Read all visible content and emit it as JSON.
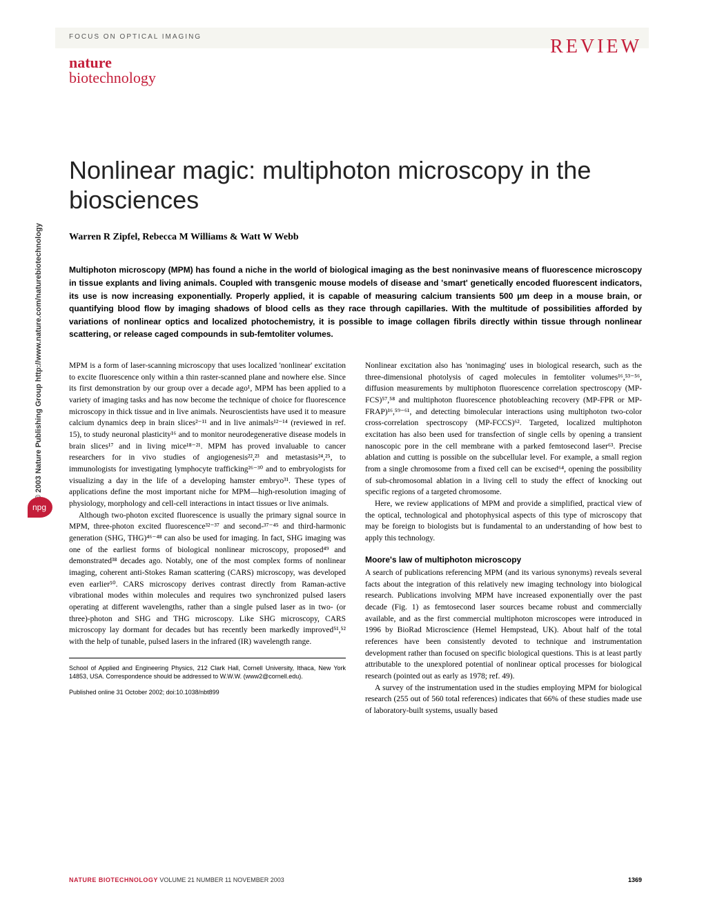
{
  "header": {
    "focus": "FOCUS ON OPTICAL IMAGING",
    "review": "REVIEW",
    "journal_line1": "nature",
    "journal_line2": "biotechnology"
  },
  "sidebar": {
    "copyright": "© 2003 Nature Publishing Group   http://www.nature.com/naturebiotechnology",
    "badge": "npg"
  },
  "article": {
    "title": "Nonlinear magic: multiphoton microscopy in the biosciences",
    "authors": "Warren R Zipfel, Rebecca M Williams & Watt W Webb",
    "abstract": "Multiphoton microscopy (MPM) has found a niche in the world of biological imaging as the best noninvasive means of fluorescence microscopy in tissue explants and living animals. Coupled with transgenic mouse models of disease and 'smart' genetically encoded fluorescent indicators, its use is now increasing exponentially. Properly applied, it is capable of measuring calcium transients 500 μm deep in a mouse brain, or quantifying blood flow by imaging shadows of blood cells as they race through capillaries. With the multitude of possibilities afforded by variations of nonlinear optics and localized photochemistry, it is possible to image collagen fibrils directly within tissue through nonlinear scattering, or release caged compounds in sub-femtoliter volumes.",
    "para1": "MPM is a form of laser-scanning microscopy that uses localized 'nonlinear' excitation to excite fluorescence only within a thin raster-scanned plane and nowhere else. Since its first demonstration by our group over a decade ago¹, MPM has been applied to a variety of imaging tasks and has now become the technique of choice for fluorescence microscopy in thick tissue and in live animals. Neuroscientists have used it to measure calcium dynamics deep in brain slices²⁻¹¹ and in live animals¹²⁻¹⁴ (reviewed in ref. 15), to study neuronal plasticity¹⁶ and to monitor neurodegenerative disease models in brain slices¹⁷ and in living mice¹⁸⁻²¹. MPM has proved invaluable to cancer researchers for in vivo studies of angiogenesis²²,²³ and metastasis²⁴,²⁵, to immunologists for investigating lymphocyte trafficking²⁶⁻³⁰ and to embryologists for visualizing a day in the life of a developing hamster embryo³¹. These types of applications define the most important niche for MPM—high-resolution imaging of physiology, morphology and cell-cell interactions in intact tissues or live animals.",
    "para2": "Although two-photon excited fluorescence is usually the primary signal source in MPM, three-photon excited fluorescence³²⁻³⁷ and second-³⁷⁻⁴⁵ and third-harmonic generation (SHG, THG)⁴⁶⁻⁴⁸ can also be used for imaging. In fact, SHG imaging was one of the earliest forms of biological nonlinear microscopy, proposed⁴⁹ and demonstrated³⁸ decades ago. Notably, one of the most complex forms of nonlinear imaging, coherent anti-Stokes Raman scattering (CARS) microscopy, was developed even earlier⁵⁰. CARS microscopy derives contrast directly from Raman-active vibrational modes within molecules and requires two synchronized pulsed lasers operating at different wavelengths, rather than a single pulsed laser as in two- (or three)-photon and SHG and THG microscopy. Like SHG microscopy, CARS microscopy lay dormant for decades but has recently been markedly improved⁵¹,⁵² with the help of tunable, pulsed lasers in the infrared (IR) wavelength range.",
    "para3": "Nonlinear excitation also has 'nonimaging' uses in biological research, such as the three-dimensional photolysis of caged molecules in femtoliter volumes¹⁶,⁵³⁻⁵⁶, diffusion measurements by multiphoton fluorescence correlation spectroscopy (MP-FCS)⁵⁷,⁵⁸ and multiphoton fluorescence photobleaching recovery (MP-FPR or MP-FRAP)¹⁶,⁵⁹⁻⁶¹, and detecting bimolecular interactions using multiphoton two-color cross-correlation spectroscopy (MP-FCCS)⁶². Targeted, localized multiphoton excitation has also been used for transfection of single cells by opening a transient nanoscopic pore in the cell membrane with a parked femtosecond laser⁶³. Precise ablation and cutting is possible on the subcellular level. For example, a small region from a single chromosome from a fixed cell can be excised⁶⁴, opening the possibility of sub-chromosomal ablation in a living cell to study the effect of knocking out specific regions of a targeted chromosome.",
    "para4": "Here, we review applications of MPM and provide a simplified, practical view of the optical, technological and photophysical aspects of this type of microscopy that may be foreign to biologists but is fundamental to an understanding of how best to apply this technology.",
    "section_heading": "Moore's law of multiphoton microscopy",
    "para5": "A search of publications referencing MPM (and its various synonyms) reveals several facts about the integration of this relatively new imaging technology into biological research. Publications involving MPM have increased exponentially over the past decade (Fig. 1) as femtosecond laser sources became robust and commercially available, and as the first commercial multiphoton microscopes were introduced in 1996 by BioRad Microscience (Hemel Hempstead, UK). About half of the total references have been consistently devoted to technique and instrumentation development rather than focused on specific biological questions. This is at least partly attributable to the unexplored potential of nonlinear optical processes for biological research (pointed out as early as 1978; ref. 49).",
    "para6": "A survey of the instrumentation used in the studies employing MPM for biological research (255 out of 560 total references) indicates that 66% of these studies made use of laboratory-built systems, usually based",
    "affiliation": "School of Applied and Engineering Physics, 212 Clark Hall, Cornell University, Ithaca, New York 14853, USA. Correspondence should be addressed to W.W.W. (www2@cornell.edu).",
    "published": "Published online 31 October 2002; doi:10.1038/nbt899"
  },
  "footer": {
    "journal": "NATURE BIOTECHNOLOGY",
    "issue": "VOLUME 21   NUMBER 11   NOVEMBER 2003",
    "page": "1369"
  },
  "colors": {
    "accent": "#c41e3a",
    "header_bg": "#f5f5f0",
    "text": "#222222"
  }
}
